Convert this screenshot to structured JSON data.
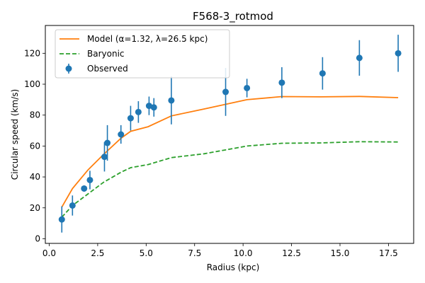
{
  "chart_data": {
    "type": "line",
    "title": "F568-3_rotmod",
    "xlabel": "Radius (kpc)",
    "ylabel": "Circular speed (km/s)",
    "xlim": [
      -0.2,
      18.8
    ],
    "ylim": [
      -3,
      138
    ],
    "xticks": [
      0.0,
      2.5,
      5.0,
      7.5,
      10.0,
      12.5,
      15.0,
      17.5
    ],
    "xtick_labels": [
      "0.0",
      "2.5",
      "5.0",
      "7.5",
      "10.0",
      "12.5",
      "15.0",
      "17.5"
    ],
    "yticks": [
      0,
      20,
      40,
      60,
      80,
      100,
      120
    ],
    "ytick_labels": [
      "0",
      "20",
      "40",
      "60",
      "80",
      "100",
      "120"
    ],
    "grid": false,
    "legend_position": "top-left",
    "series": [
      {
        "name": "Model (α=1.32, λ=26.5 kpc)",
        "kind": "line",
        "color": "#ff7f0e",
        "x": [
          0.65,
          1.2,
          2.0,
          2.8,
          3.7,
          4.2,
          5.1,
          6.3,
          8.0,
          10.2,
          12.0,
          14.0,
          16.0,
          18.0
        ],
        "y": [
          20.5,
          32.5,
          44.5,
          54.5,
          65.0,
          69.5,
          72.5,
          79.5,
          84.0,
          90.0,
          92.0,
          91.8,
          92.1,
          91.3
        ]
      },
      {
        "name": "Baryonic",
        "kind": "dashed-line",
        "color": "#2ca02c",
        "x": [
          0.65,
          1.2,
          2.0,
          2.8,
          3.7,
          4.2,
          5.1,
          6.3,
          8.0,
          10.2,
          12.0,
          14.0,
          16.0,
          18.0
        ],
        "y": [
          14.0,
          21.5,
          29.0,
          36.5,
          43.0,
          46.0,
          48.0,
          52.5,
          55.0,
          60.0,
          61.8,
          62.0,
          62.8,
          62.6
        ]
      },
      {
        "name": "Observed",
        "kind": "errorbar",
        "color": "#1f77b4",
        "x": [
          0.65,
          1.2,
          1.8,
          2.1,
          2.85,
          3.0,
          3.7,
          4.2,
          4.6,
          5.15,
          5.4,
          6.3,
          9.1,
          10.2,
          12.0,
          14.1,
          16.0,
          18.0
        ],
        "y": [
          12.5,
          21.5,
          32.5,
          38.0,
          53.0,
          62.0,
          67.5,
          78.0,
          82.0,
          86.0,
          85.0,
          89.5,
          95.0,
          97.5,
          101.0,
          107.0,
          117.0,
          120.0
        ],
        "yerr": [
          8.5,
          6.5,
          2.0,
          6.0,
          9.5,
          11.5,
          6.0,
          8.0,
          7.0,
          6.0,
          6.0,
          15.5,
          15.5,
          6.0,
          10.0,
          10.5,
          11.5,
          12.0
        ]
      }
    ]
  }
}
